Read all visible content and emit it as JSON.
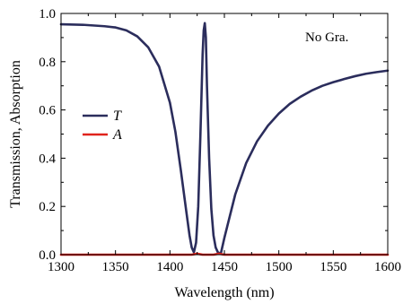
{
  "chart_data": {
    "type": "line",
    "xlabel": "Wavelength (nm)",
    "ylabel": "Transmission, Absorption",
    "xlim": [
      1300,
      1600
    ],
    "ylim": [
      0,
      1.0
    ],
    "xticks": [
      1300,
      1350,
      1400,
      1450,
      1500,
      1550,
      1600
    ],
    "yticks": [
      0.0,
      0.2,
      0.4,
      0.6,
      0.8,
      1.0
    ],
    "xtick_labels": [
      "1300",
      "1350",
      "1400",
      "1450",
      "1500",
      "1550",
      "1600"
    ],
    "ytick_labels": [
      "0.0",
      "0.2",
      "0.4",
      "0.6",
      "0.8",
      "1.0"
    ],
    "annotation": "No Gra.",
    "legend_position": "middle-left",
    "grid": false,
    "series": [
      {
        "name": "T",
        "color": "#2b2d5c",
        "x": [
          1300,
          1320,
          1340,
          1350,
          1360,
          1370,
          1380,
          1390,
          1400,
          1405,
          1410,
          1415,
          1418,
          1420,
          1422,
          1424,
          1426,
          1428,
          1430,
          1431,
          1432,
          1433,
          1434,
          1436,
          1438,
          1440,
          1442,
          1444,
          1446,
          1447,
          1448,
          1450,
          1455,
          1460,
          1470,
          1480,
          1490,
          1500,
          1510,
          1520,
          1530,
          1540,
          1550,
          1560,
          1570,
          1580,
          1590,
          1600
        ],
        "y": [
          0.955,
          0.953,
          0.947,
          0.942,
          0.93,
          0.905,
          0.86,
          0.78,
          0.63,
          0.51,
          0.35,
          0.18,
          0.08,
          0.03,
          0.01,
          0.05,
          0.2,
          0.5,
          0.83,
          0.93,
          0.96,
          0.9,
          0.7,
          0.4,
          0.19,
          0.08,
          0.03,
          0.01,
          0.005,
          0.01,
          0.03,
          0.07,
          0.16,
          0.25,
          0.38,
          0.47,
          0.535,
          0.585,
          0.625,
          0.655,
          0.68,
          0.7,
          0.715,
          0.728,
          0.74,
          0.75,
          0.757,
          0.763
        ]
      },
      {
        "name": "A",
        "color": "#e0231c",
        "x": [
          1300,
          1420,
          1425,
          1430,
          1440,
          1445,
          1450,
          1600
        ],
        "y": [
          0.0,
          0.0,
          0.004,
          0.0,
          0.0,
          0.004,
          0.0,
          0.0
        ]
      }
    ]
  }
}
